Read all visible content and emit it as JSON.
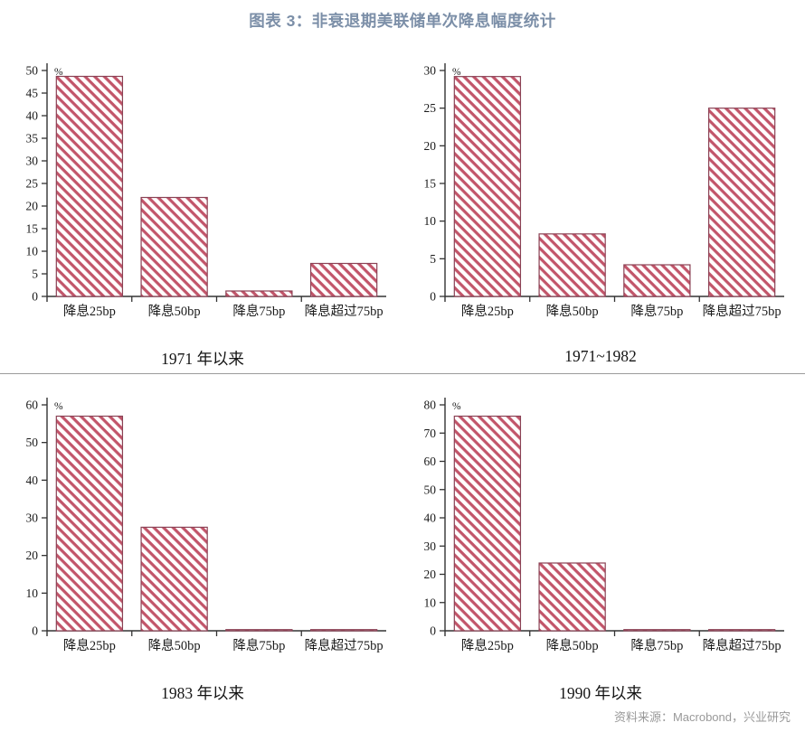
{
  "title": "图表 3：非衰退期美联储单次降息幅度统计",
  "source": "资料来源：Macrobond，兴业研究",
  "colors": {
    "title": "#7c8fa8",
    "bar_stripe": "#c2556a",
    "bar_fill_bg": "#fffdfd",
    "bar_border": "#8b4255",
    "axis": "#333333",
    "tick_text": "#1a1a1a",
    "divider": "#9b9b9b",
    "source_text": "#999999"
  },
  "chart_data": [
    {
      "type": "bar",
      "caption": "1971 年以来",
      "unit": "%",
      "categories": [
        "降息25bp",
        "降息50bp",
        "降息75bp",
        "降息超过75bp"
      ],
      "values": [
        48.7,
        21.9,
        1.2,
        7.3
      ],
      "ylim": [
        0,
        50
      ],
      "ytick_step": 5,
      "grid": false,
      "legend": "none"
    },
    {
      "type": "bar",
      "caption": "1971~1982",
      "unit": "%",
      "categories": [
        "降息25bp",
        "降息50bp",
        "降息75bp",
        "降息超过75bp"
      ],
      "values": [
        29.2,
        8.3,
        4.2,
        25.0
      ],
      "ylim": [
        0,
        30
      ],
      "ytick_step": 5,
      "grid": false,
      "legend": "none"
    },
    {
      "type": "bar",
      "caption": "1983 年以来",
      "unit": "%",
      "categories": [
        "降息25bp",
        "降息50bp",
        "降息75bp",
        "降息超过75bp"
      ],
      "values": [
        57.0,
        27.5,
        0.3,
        0.3
      ],
      "ylim": [
        0,
        60
      ],
      "ytick_step": 10,
      "grid": false,
      "legend": "none"
    },
    {
      "type": "bar",
      "caption": "1990 年以来",
      "unit": "%",
      "categories": [
        "降息25bp",
        "降息50bp",
        "降息75bp",
        "降息超过75bp"
      ],
      "values": [
        76.0,
        24.0,
        0.4,
        0.4
      ],
      "ylim": [
        0,
        80
      ],
      "ytick_step": 10,
      "grid": false,
      "legend": "none"
    }
  ]
}
